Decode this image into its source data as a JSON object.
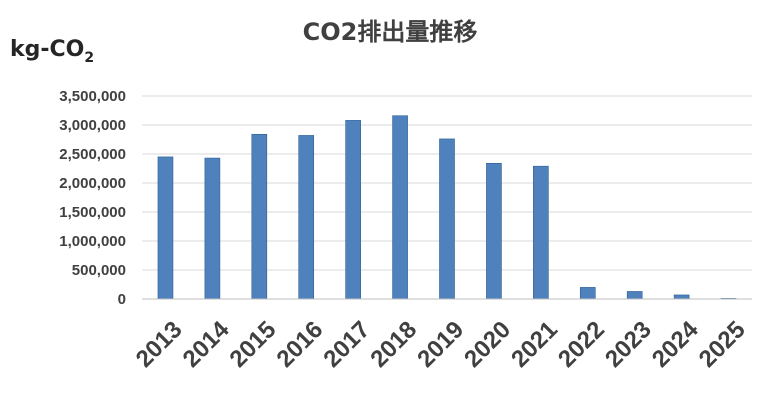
{
  "chart_data": {
    "type": "bar",
    "title": "CO2排出量推移",
    "ylabel": "kg-CO",
    "ylabel_subscript": "2",
    "categories": [
      "2013",
      "2014",
      "2015",
      "2016",
      "2017",
      "2018",
      "2019",
      "2020",
      "2021",
      "2022",
      "2023",
      "2024",
      "2025"
    ],
    "values": [
      2450000,
      2430000,
      2840000,
      2820000,
      3080000,
      3160000,
      2760000,
      2340000,
      2290000,
      200000,
      130000,
      70000,
      10000
    ],
    "ylim": [
      0,
      3500000
    ],
    "yticks": [
      0,
      500000,
      1000000,
      1500000,
      2000000,
      2500000,
      3000000,
      3500000
    ],
    "ytick_labels": [
      "0",
      "500,000",
      "1,000,000",
      "1,500,000",
      "2,000,000",
      "2,500,000",
      "3,000,000",
      "3,500,000"
    ],
    "grid": true,
    "legend": "none",
    "bar_color": "#4f81bd",
    "bar_edge_color": "#2f5f94"
  }
}
